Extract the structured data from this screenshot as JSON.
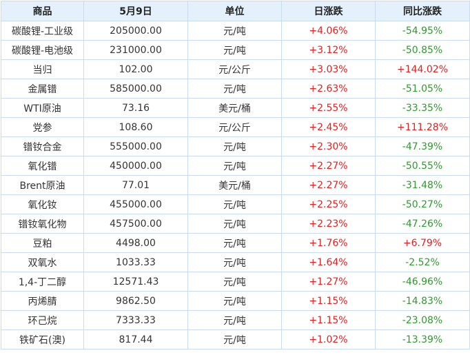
{
  "table": {
    "headers": [
      "商品",
      "5月9日",
      "单位",
      "日涨跌",
      "同比涨跌"
    ],
    "rows": [
      {
        "name": "碳酸锂-工业级",
        "price": "205000.00",
        "unit": "元/吨",
        "daily": "+4.06%",
        "yoy": "-54.95%"
      },
      {
        "name": "碳酸锂-电池级",
        "price": "231000.00",
        "unit": "元/吨",
        "daily": "+3.12%",
        "yoy": "-50.85%"
      },
      {
        "name": "当归",
        "price": "102.00",
        "unit": "元/公斤",
        "daily": "+3.03%",
        "yoy": "+144.02%"
      },
      {
        "name": "金属镨",
        "price": "585000.00",
        "unit": "元/吨",
        "daily": "+2.63%",
        "yoy": "-51.05%"
      },
      {
        "name": "WTI原油",
        "price": "73.16",
        "unit": "美元/桶",
        "daily": "+2.55%",
        "yoy": "-33.35%"
      },
      {
        "name": "党参",
        "price": "108.60",
        "unit": "元/公斤",
        "daily": "+2.45%",
        "yoy": "+111.28%"
      },
      {
        "name": "镨钕合金",
        "price": "555000.00",
        "unit": "元/吨",
        "daily": "+2.30%",
        "yoy": "-47.39%"
      },
      {
        "name": "氧化镨",
        "price": "450000.00",
        "unit": "元/吨",
        "daily": "+2.27%",
        "yoy": "-50.55%"
      },
      {
        "name": "Brent原油",
        "price": "77.01",
        "unit": "美元/桶",
        "daily": "+2.27%",
        "yoy": "-31.48%"
      },
      {
        "name": "氧化钕",
        "price": "455000.00",
        "unit": "元/吨",
        "daily": "+2.25%",
        "yoy": "-50.27%"
      },
      {
        "name": "镨钕氧化物",
        "price": "457500.00",
        "unit": "元/吨",
        "daily": "+2.23%",
        "yoy": "-47.26%"
      },
      {
        "name": "豆粕",
        "price": "4498.00",
        "unit": "元/吨",
        "daily": "+1.76%",
        "yoy": "+6.79%"
      },
      {
        "name": "双氧水",
        "price": "1033.33",
        "unit": "元/吨",
        "daily": "+1.64%",
        "yoy": "-2.52%"
      },
      {
        "name": "1,4-丁二醇",
        "price": "12571.43",
        "unit": "元/吨",
        "daily": "+1.27%",
        "yoy": "-46.96%"
      },
      {
        "name": "丙烯腈",
        "price": "9862.50",
        "unit": "元/吨",
        "daily": "+1.15%",
        "yoy": "-14.83%"
      },
      {
        "name": "环己烷",
        "price": "7333.33",
        "unit": "元/吨",
        "daily": "+1.15%",
        "yoy": "-23.08%"
      },
      {
        "name": "铁矿石(澳)",
        "price": "817.44",
        "unit": "元/吨",
        "daily": "+1.02%",
        "yoy": "-13.39%"
      }
    ]
  },
  "colors": {
    "header_bg": "#e4f0fb",
    "border": "#c9dcef",
    "up": "#e02020",
    "down": "#2e9a2e"
  }
}
